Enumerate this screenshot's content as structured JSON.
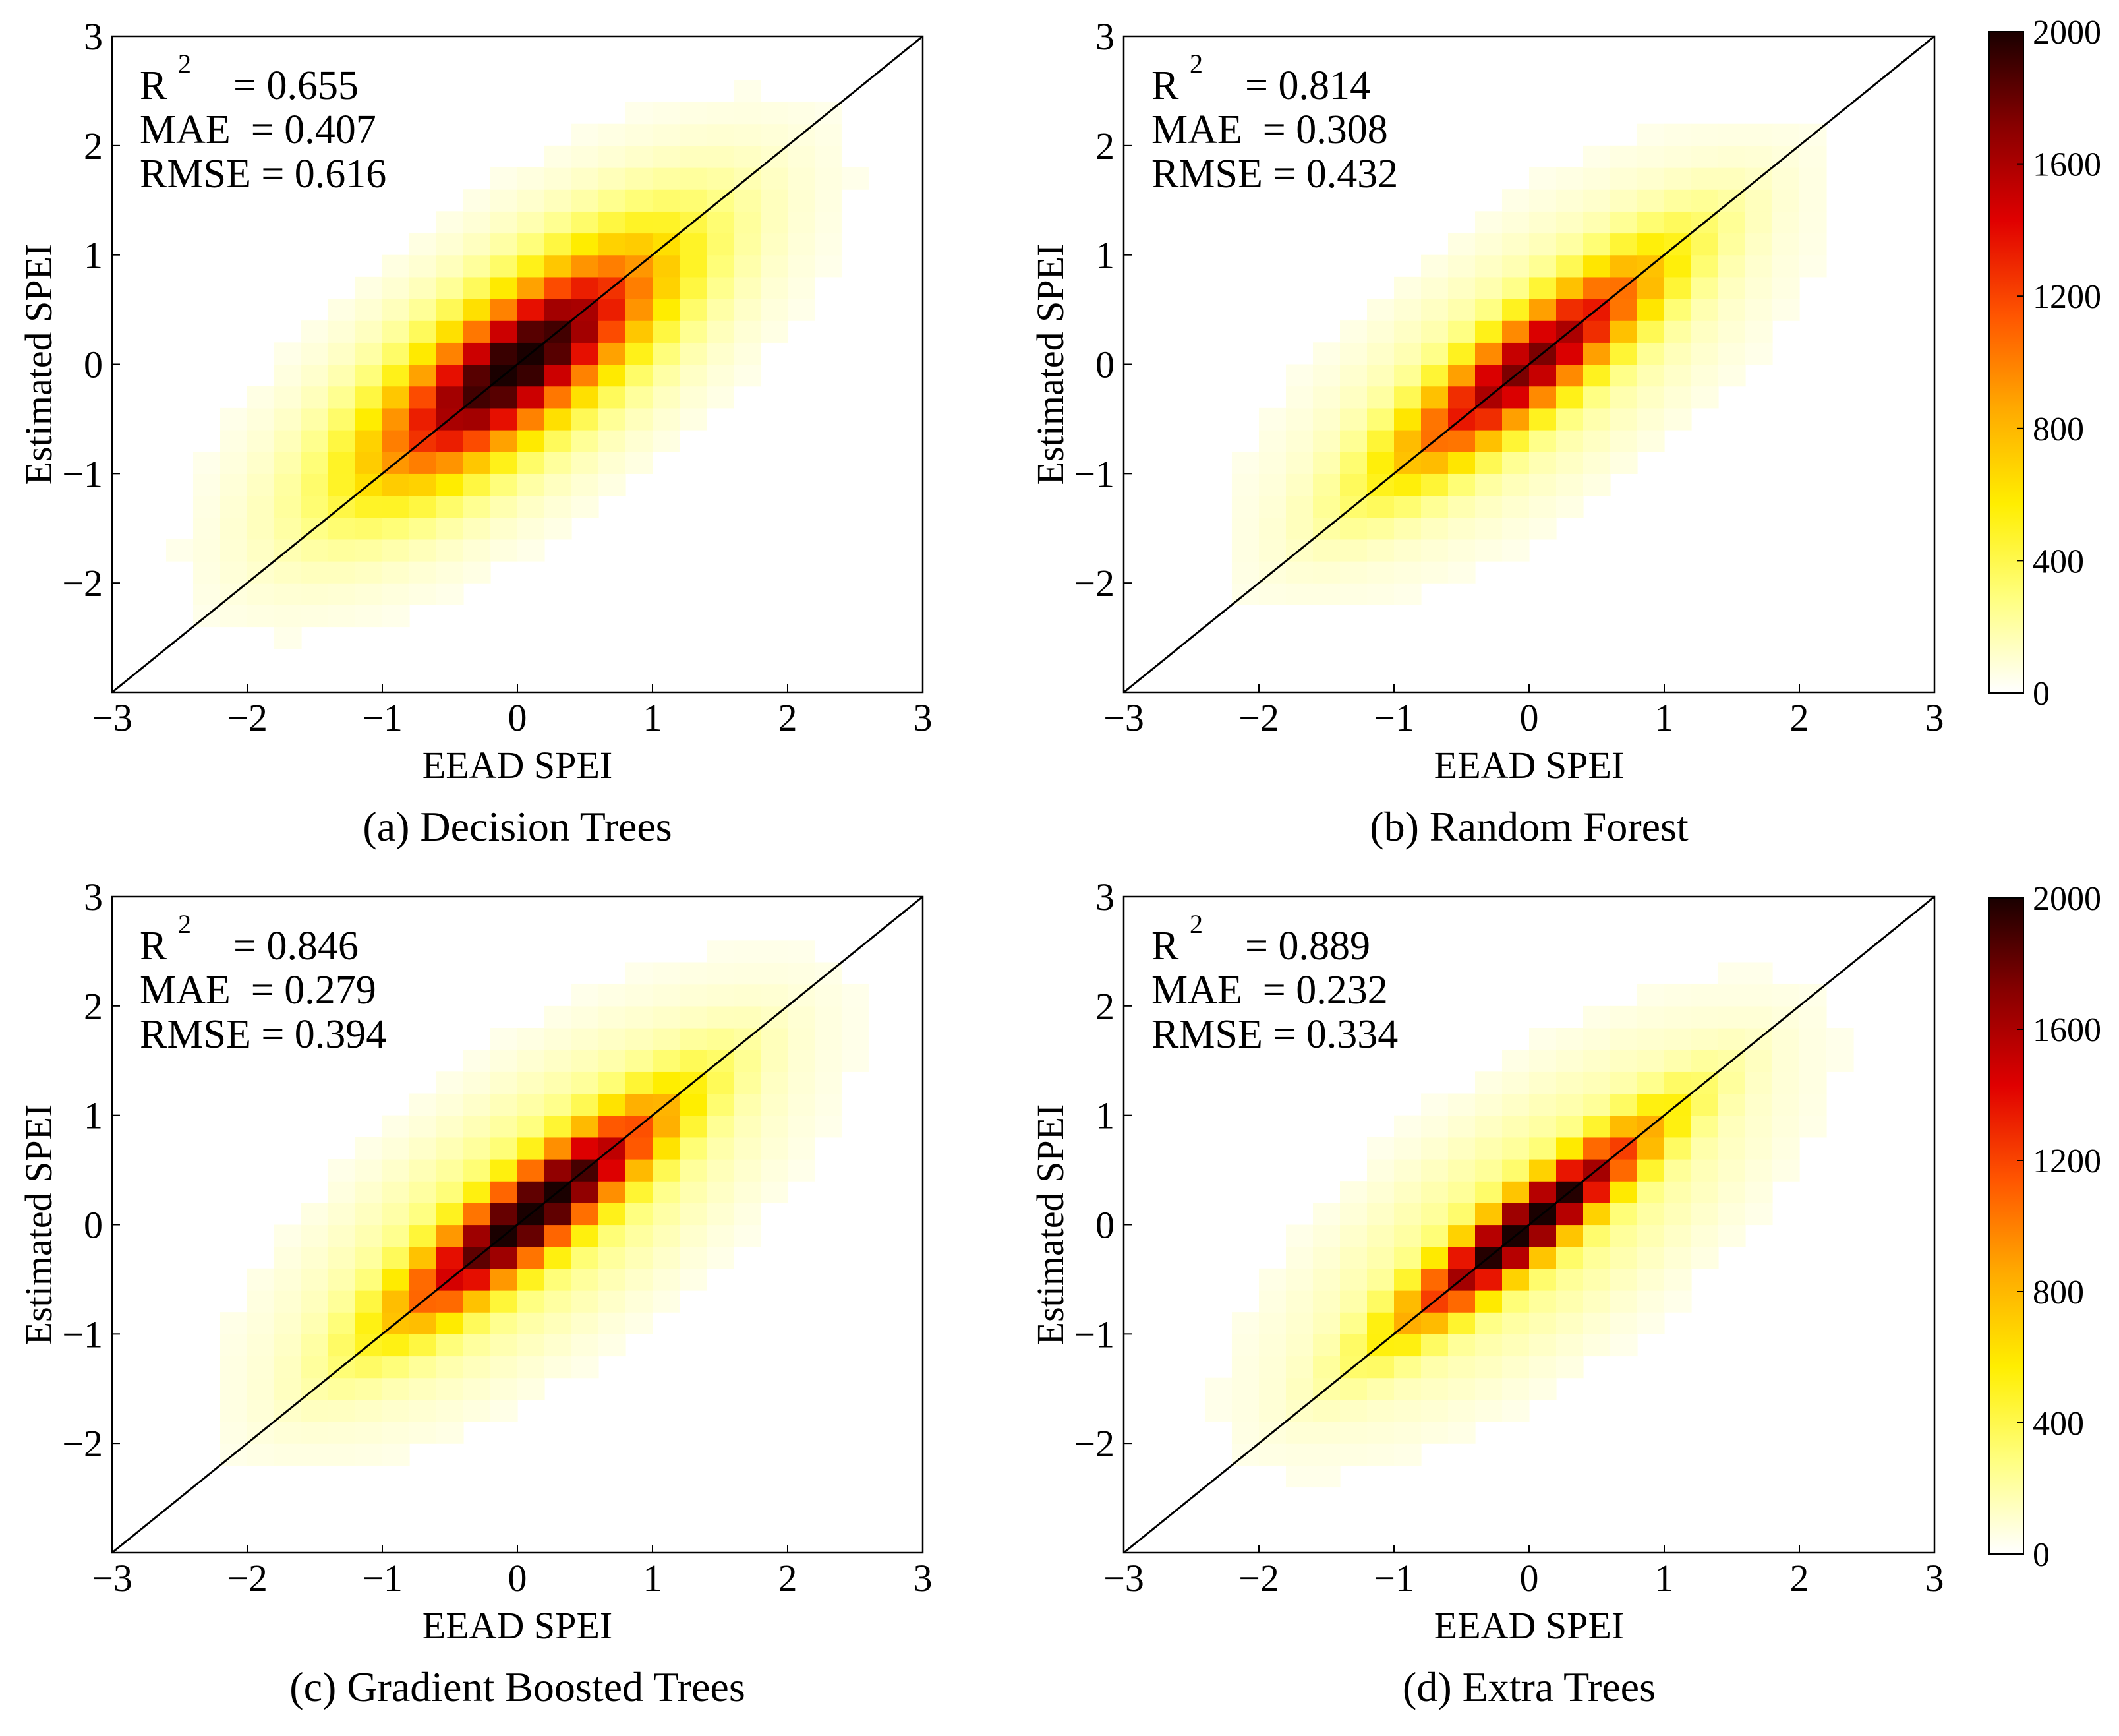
{
  "figure": {
    "background": "#ffffff",
    "line_color": "#000000"
  },
  "colormap": {
    "name": "hot-reversed",
    "stops": [
      "#ffffff",
      "#ffff80",
      "#ffee00",
      "#ffaa00",
      "#ff5500",
      "#e00000",
      "#880000",
      "#1a0000"
    ]
  },
  "colorbars": [
    {
      "ticks": [
        "2000",
        "1600",
        "1200",
        "800",
        "400",
        "0"
      ],
      "min": 0,
      "max": 2000
    },
    {
      "ticks": [
        "2000",
        "1600",
        "1200",
        "800",
        "400",
        "0"
      ],
      "min": 0,
      "max": 2000
    }
  ],
  "chart_data": [
    {
      "type": "heatmap",
      "panel": "a",
      "caption": "(a) Decision Trees",
      "xlabel": "EEAD SPEI",
      "ylabel": "Estimated SPEI",
      "xlim": [
        -3,
        3
      ],
      "ylim": [
        -3,
        3
      ],
      "xticks": [
        "−3",
        "−2",
        "−1",
        "0",
        "1",
        "2",
        "3"
      ],
      "yticks": [
        "−2",
        "−1",
        "0",
        "1",
        "2",
        "3"
      ],
      "bin_width": 0.2,
      "stats": {
        "r2": "R",
        "r2_sup": "2",
        "r2_value": "= 0.655",
        "mae": "MAE  = 0.407",
        "rmse": "RMSE = 0.616"
      },
      "density": {
        "peak": 1750,
        "sigma_along": 0.85,
        "sigma_across": 0.3,
        "bias": 0.0,
        "tail": 0.2
      },
      "identity_line": true
    },
    {
      "type": "heatmap",
      "panel": "b",
      "caption": "(b) Random Forest",
      "xlabel": "EEAD SPEI",
      "ylabel": "Estimated SPEI",
      "xlim": [
        -3,
        3
      ],
      "ylim": [
        -3,
        3
      ],
      "xticks": [
        "−3",
        "−2",
        "−1",
        "0",
        "1",
        "2",
        "3"
      ],
      "yticks": [
        "−2",
        "−1",
        "0",
        "1",
        "2",
        "3"
      ],
      "bin_width": 0.2,
      "stats": {
        "r2": "R",
        "r2_sup": "2",
        "r2_value": "= 0.814",
        "mae": "MAE  = 0.308",
        "rmse": "RMSE = 0.432"
      },
      "density": {
        "peak": 1500,
        "sigma_along": 0.85,
        "sigma_across": 0.22,
        "bias": 0.0,
        "tail": 0.15
      },
      "identity_line": true
    },
    {
      "type": "heatmap",
      "panel": "c",
      "caption": "(c) Gradient Boosted Trees",
      "xlabel": "EEAD SPEI",
      "ylabel": "Estimated SPEI",
      "xlim": [
        -3,
        3
      ],
      "ylim": [
        -3,
        3
      ],
      "xticks": [
        "−3",
        "−2",
        "−1",
        "0",
        "1",
        "2",
        "3"
      ],
      "yticks": [
        "−2",
        "−1",
        "0",
        "1",
        "2",
        "3"
      ],
      "bin_width": 0.2,
      "stats": {
        "r2": "R",
        "r2_sup": "2",
        "r2_value": "= 0.846",
        "mae": "MAE  = 0.279",
        "rmse": "RMSE = 0.394"
      },
      "density": {
        "peak": 1950,
        "sigma_along": 0.85,
        "sigma_across": 0.2,
        "bias": 0.12,
        "tail": 0.15
      },
      "identity_line": true
    },
    {
      "type": "heatmap",
      "panel": "d",
      "caption": "(d) Extra Trees",
      "xlabel": "EEAD SPEI",
      "ylabel": "Estimated SPEI",
      "xlim": [
        -3,
        3
      ],
      "ylim": [
        -3,
        3
      ],
      "xticks": [
        "−3",
        "−2",
        "−1",
        "0",
        "1",
        "2",
        "3"
      ],
      "yticks": [
        "−2",
        "−1",
        "0",
        "1",
        "2",
        "3"
      ],
      "bin_width": 0.2,
      "stats": {
        "r2": "R",
        "r2_sup": "2",
        "r2_value": "= 0.889",
        "mae": "MAE  = 0.232",
        "rmse": "RMSE = 0.334"
      },
      "density": {
        "peak": 2000,
        "sigma_along": 0.8,
        "sigma_across": 0.16,
        "bias": 0.0,
        "tail": 0.12
      },
      "identity_line": true
    }
  ]
}
